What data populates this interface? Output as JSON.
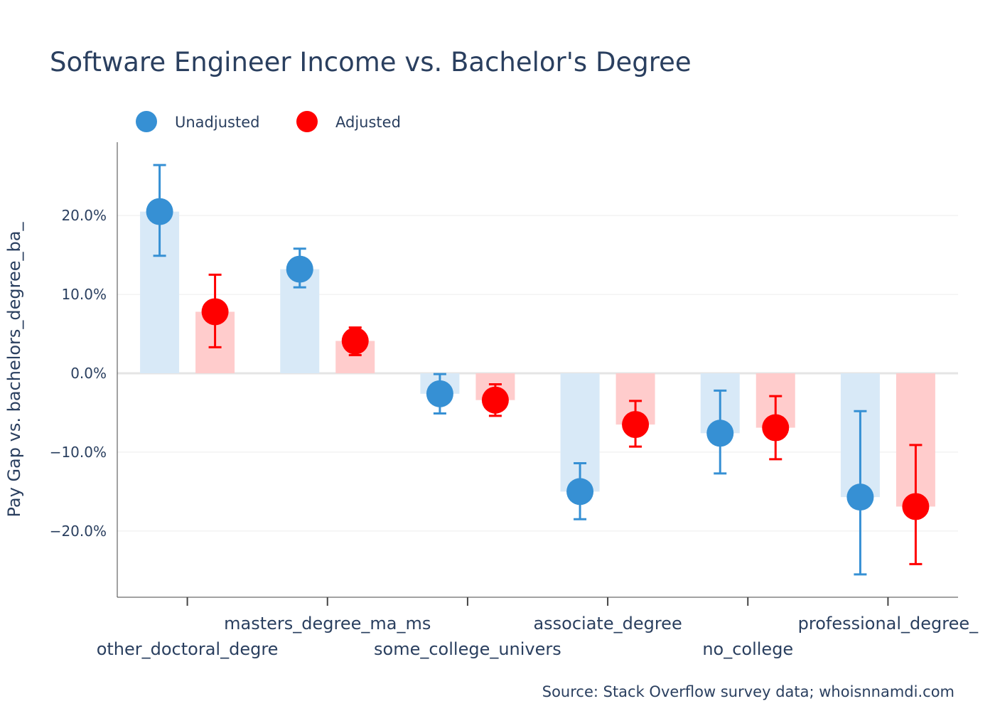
{
  "chart_data": {
    "type": "bar+scatter with error bars",
    "title": "Software Engineer Income vs. Bachelor's Degree",
    "ylabel": "Pay Gap vs. bachelors_degree_ba_",
    "xlabel": "",
    "source": "Source: Stack Overflow survey data; whoisnnamdi.com",
    "categories": [
      "other_doctoral_degre",
      "masters_degree_ma_ms",
      "some_college_univers",
      "associate_degree",
      "no_college",
      "professional_degree_"
    ],
    "ylim": [
      -28.4,
      29.3
    ],
    "yticks": [
      20,
      10,
      0,
      -10,
      -20
    ],
    "ytick_labels": [
      "20.0%",
      "10.0%",
      "0.0%",
      "−10.0%",
      "−20.0%"
    ],
    "grid": true,
    "legend_position": "top-left, horizontal",
    "series": [
      {
        "name": "Unadjusted",
        "color": "#3690d4",
        "bar_color": "#d8e9f7",
        "values": [
          20.5,
          13.2,
          -2.6,
          -15.0,
          -7.6,
          -15.7
        ],
        "error_upper": [
          26.4,
          15.8,
          -0.1,
          -11.4,
          -2.2,
          -4.8
        ],
        "error_lower": [
          14.9,
          10.9,
          -5.1,
          -18.5,
          -12.7,
          -25.5
        ]
      },
      {
        "name": "Adjusted",
        "color": "#ff0000",
        "bar_color": "#ffcccc",
        "values": [
          7.8,
          4.1,
          -3.4,
          -6.5,
          -6.9,
          -16.9
        ],
        "error_upper": [
          12.5,
          5.8,
          -1.4,
          -3.5,
          -2.9,
          -9.1
        ],
        "error_lower": [
          3.3,
          2.3,
          -5.4,
          -9.3,
          -10.9,
          -24.2
        ]
      }
    ]
  }
}
